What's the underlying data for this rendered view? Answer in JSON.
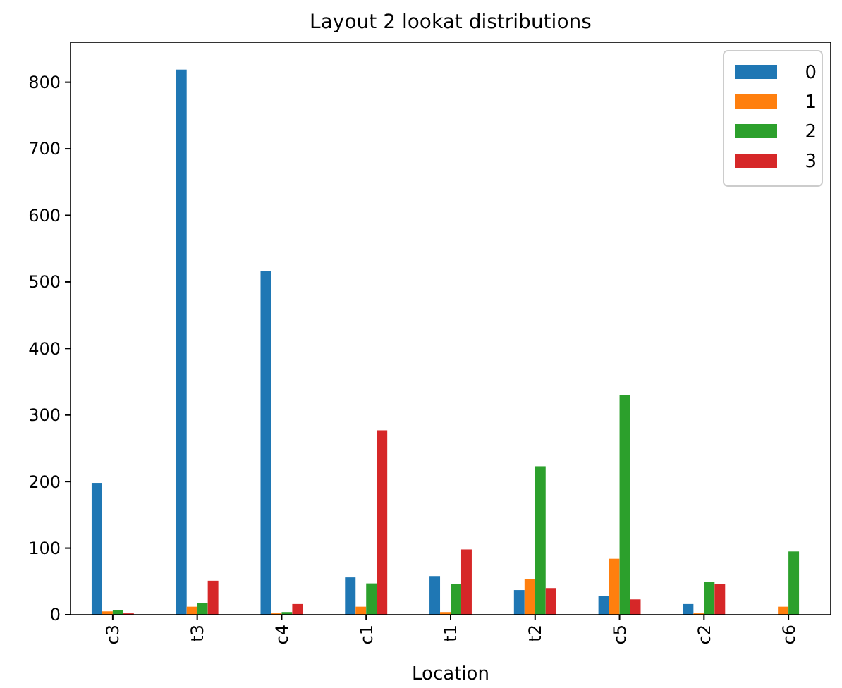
{
  "chart_data": {
    "type": "bar",
    "title": "Layout 2 lookat distributions",
    "xlabel": "Location",
    "categories": [
      "c3",
      "t3",
      "c4",
      "c1",
      "t1",
      "t2",
      "c5",
      "c2",
      "c6"
    ],
    "series": [
      {
        "name": "0",
        "color": "#1f77b4",
        "values": [
          198,
          819,
          516,
          56,
          58,
          37,
          28,
          16,
          0
        ]
      },
      {
        "name": "1",
        "color": "#ff7f0e",
        "values": [
          5,
          12,
          2,
          12,
          4,
          53,
          84,
          2,
          12
        ]
      },
      {
        "name": "2",
        "color": "#2ca02c",
        "values": [
          7,
          18,
          4,
          47,
          46,
          223,
          330,
          49,
          95
        ]
      },
      {
        "name": "3",
        "color": "#d62728",
        "values": [
          2,
          51,
          16,
          277,
          98,
          40,
          23,
          46,
          0
        ]
      }
    ],
    "ylim": [
      0,
      860
    ],
    "yticks": [
      0,
      100,
      200,
      300,
      400,
      500,
      600,
      700,
      800
    ],
    "legend": "top right",
    "grid": false
  }
}
